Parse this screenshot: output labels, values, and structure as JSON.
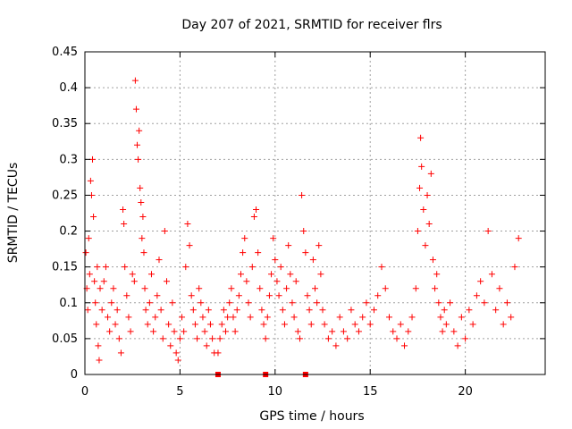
{
  "chart_data": {
    "type": "scatter",
    "title": "Day 207 of 2021, SRMTID for receiver flrs",
    "xlabel": "GPS time / hours",
    "ylabel": "SRMTID / TECUs",
    "xlim": [
      0,
      24.2
    ],
    "ylim": [
      0,
      0.45
    ],
    "xticks": [
      0,
      5,
      10,
      15,
      20
    ],
    "yticks": [
      0,
      0.05,
      0.1,
      0.15,
      0.2,
      0.25,
      0.3,
      0.35,
      0.4,
      0.45
    ],
    "ytick_labels": [
      "0",
      "0.05",
      "0.1",
      "0.15",
      "0.2",
      "0.25",
      "0.3",
      "0.35",
      "0.4",
      "0.45"
    ],
    "xtick_labels": [
      "0",
      "5",
      "10",
      "15",
      "20"
    ],
    "grid": true,
    "marker": "+",
    "color": "#ff0000",
    "gap_markers_x": [
      7.0,
      9.5,
      11.6
    ],
    "series": [
      {
        "name": "SRMTID",
        "points": [
          [
            0.05,
            0.17
          ],
          [
            0.1,
            0.12
          ],
          [
            0.15,
            0.09
          ],
          [
            0.2,
            0.19
          ],
          [
            0.25,
            0.14
          ],
          [
            0.3,
            0.27
          ],
          [
            0.35,
            0.25
          ],
          [
            0.4,
            0.3
          ],
          [
            0.45,
            0.22
          ],
          [
            0.5,
            0.13
          ],
          [
            0.55,
            0.1
          ],
          [
            0.6,
            0.07
          ],
          [
            0.65,
            0.15
          ],
          [
            0.7,
            0.04
          ],
          [
            0.75,
            0.02
          ],
          [
            0.8,
            0.12
          ],
          [
            0.9,
            0.09
          ],
          [
            1.0,
            0.13
          ],
          [
            1.1,
            0.15
          ],
          [
            1.2,
            0.08
          ],
          [
            1.3,
            0.06
          ],
          [
            1.4,
            0.1
          ],
          [
            1.5,
            0.12
          ],
          [
            1.6,
            0.07
          ],
          [
            1.7,
            0.09
          ],
          [
            1.8,
            0.05
          ],
          [
            1.9,
            0.03
          ],
          [
            2.0,
            0.23
          ],
          [
            2.05,
            0.21
          ],
          [
            2.1,
            0.15
          ],
          [
            2.2,
            0.11
          ],
          [
            2.3,
            0.08
          ],
          [
            2.4,
            0.06
          ],
          [
            2.5,
            0.14
          ],
          [
            2.6,
            0.13
          ],
          [
            2.65,
            0.41
          ],
          [
            2.7,
            0.37
          ],
          [
            2.75,
            0.32
          ],
          [
            2.8,
            0.3
          ],
          [
            2.85,
            0.34
          ],
          [
            2.9,
            0.26
          ],
          [
            2.95,
            0.24
          ],
          [
            3.0,
            0.19
          ],
          [
            3.05,
            0.22
          ],
          [
            3.1,
            0.17
          ],
          [
            3.15,
            0.12
          ],
          [
            3.2,
            0.09
          ],
          [
            3.3,
            0.07
          ],
          [
            3.4,
            0.1
          ],
          [
            3.5,
            0.14
          ],
          [
            3.6,
            0.06
          ],
          [
            3.7,
            0.08
          ],
          [
            3.8,
            0.11
          ],
          [
            3.9,
            0.16
          ],
          [
            4.0,
            0.09
          ],
          [
            4.1,
            0.05
          ],
          [
            4.2,
            0.2
          ],
          [
            4.3,
            0.13
          ],
          [
            4.4,
            0.07
          ],
          [
            4.5,
            0.04
          ],
          [
            4.6,
            0.1
          ],
          [
            4.7,
            0.06
          ],
          [
            4.8,
            0.03
          ],
          [
            4.9,
            0.02
          ],
          [
            5.0,
            0.05
          ],
          [
            5.1,
            0.08
          ],
          [
            5.2,
            0.06
          ],
          [
            5.3,
            0.15
          ],
          [
            5.4,
            0.21
          ],
          [
            5.5,
            0.18
          ],
          [
            5.6,
            0.11
          ],
          [
            5.7,
            0.09
          ],
          [
            5.8,
            0.07
          ],
          [
            5.9,
            0.05
          ],
          [
            6.0,
            0.12
          ],
          [
            6.1,
            0.1
          ],
          [
            6.2,
            0.08
          ],
          [
            6.3,
            0.06
          ],
          [
            6.4,
            0.04
          ],
          [
            6.5,
            0.09
          ],
          [
            6.6,
            0.07
          ],
          [
            6.7,
            0.05
          ],
          [
            6.8,
            0.03
          ],
          [
            7.0,
            0.03
          ],
          [
            7.1,
            0.05
          ],
          [
            7.2,
            0.07
          ],
          [
            7.3,
            0.09
          ],
          [
            7.4,
            0.06
          ],
          [
            7.5,
            0.08
          ],
          [
            7.6,
            0.1
          ],
          [
            7.7,
            0.12
          ],
          [
            7.8,
            0.08
          ],
          [
            7.9,
            0.06
          ],
          [
            8.0,
            0.09
          ],
          [
            8.1,
            0.11
          ],
          [
            8.2,
            0.14
          ],
          [
            8.3,
            0.17
          ],
          [
            8.4,
            0.19
          ],
          [
            8.5,
            0.13
          ],
          [
            8.6,
            0.1
          ],
          [
            8.7,
            0.08
          ],
          [
            8.8,
            0.15
          ],
          [
            8.9,
            0.22
          ],
          [
            9.0,
            0.23
          ],
          [
            9.1,
            0.17
          ],
          [
            9.2,
            0.12
          ],
          [
            9.3,
            0.09
          ],
          [
            9.4,
            0.07
          ],
          [
            9.5,
            0.05
          ],
          [
            9.6,
            0.08
          ],
          [
            9.7,
            0.11
          ],
          [
            9.8,
            0.14
          ],
          [
            9.9,
            0.19
          ],
          [
            10.0,
            0.16
          ],
          [
            10.1,
            0.13
          ],
          [
            10.2,
            0.11
          ],
          [
            10.3,
            0.15
          ],
          [
            10.4,
            0.09
          ],
          [
            10.5,
            0.07
          ],
          [
            10.6,
            0.12
          ],
          [
            10.7,
            0.18
          ],
          [
            10.8,
            0.14
          ],
          [
            10.9,
            0.1
          ],
          [
            11.0,
            0.08
          ],
          [
            11.1,
            0.13
          ],
          [
            11.2,
            0.06
          ],
          [
            11.3,
            0.05
          ],
          [
            11.4,
            0.25
          ],
          [
            11.5,
            0.2
          ],
          [
            11.6,
            0.17
          ],
          [
            11.7,
            0.11
          ],
          [
            11.8,
            0.09
          ],
          [
            11.9,
            0.07
          ],
          [
            12.0,
            0.16
          ],
          [
            12.1,
            0.12
          ],
          [
            12.2,
            0.1
          ],
          [
            12.3,
            0.18
          ],
          [
            12.4,
            0.14
          ],
          [
            12.5,
            0.09
          ],
          [
            12.6,
            0.07
          ],
          [
            12.8,
            0.05
          ],
          [
            13.0,
            0.06
          ],
          [
            13.2,
            0.04
          ],
          [
            13.4,
            0.08
          ],
          [
            13.6,
            0.06
          ],
          [
            13.8,
            0.05
          ],
          [
            14.0,
            0.09
          ],
          [
            14.2,
            0.07
          ],
          [
            14.4,
            0.06
          ],
          [
            14.6,
            0.08
          ],
          [
            14.8,
            0.1
          ],
          [
            15.0,
            0.07
          ],
          [
            15.2,
            0.09
          ],
          [
            15.4,
            0.11
          ],
          [
            15.6,
            0.15
          ],
          [
            15.8,
            0.12
          ],
          [
            16.0,
            0.08
          ],
          [
            16.2,
            0.06
          ],
          [
            16.4,
            0.05
          ],
          [
            16.6,
            0.07
          ],
          [
            16.8,
            0.04
          ],
          [
            17.0,
            0.06
          ],
          [
            17.2,
            0.08
          ],
          [
            17.4,
            0.12
          ],
          [
            17.5,
            0.2
          ],
          [
            17.6,
            0.26
          ],
          [
            17.65,
            0.33
          ],
          [
            17.7,
            0.29
          ],
          [
            17.8,
            0.23
          ],
          [
            17.9,
            0.18
          ],
          [
            18.0,
            0.25
          ],
          [
            18.1,
            0.21
          ],
          [
            18.2,
            0.28
          ],
          [
            18.3,
            0.16
          ],
          [
            18.4,
            0.12
          ],
          [
            18.5,
            0.14
          ],
          [
            18.6,
            0.1
          ],
          [
            18.7,
            0.08
          ],
          [
            18.8,
            0.06
          ],
          [
            18.9,
            0.09
          ],
          [
            19.0,
            0.07
          ],
          [
            19.2,
            0.1
          ],
          [
            19.4,
            0.06
          ],
          [
            19.6,
            0.04
          ],
          [
            19.8,
            0.08
          ],
          [
            20.0,
            0.05
          ],
          [
            20.2,
            0.09
          ],
          [
            20.4,
            0.07
          ],
          [
            20.6,
            0.11
          ],
          [
            20.8,
            0.13
          ],
          [
            21.0,
            0.1
          ],
          [
            21.2,
            0.2
          ],
          [
            21.4,
            0.14
          ],
          [
            21.6,
            0.09
          ],
          [
            21.8,
            0.12
          ],
          [
            22.0,
            0.07
          ],
          [
            22.2,
            0.1
          ],
          [
            22.4,
            0.08
          ],
          [
            22.6,
            0.15
          ],
          [
            22.8,
            0.19
          ]
        ]
      }
    ]
  }
}
